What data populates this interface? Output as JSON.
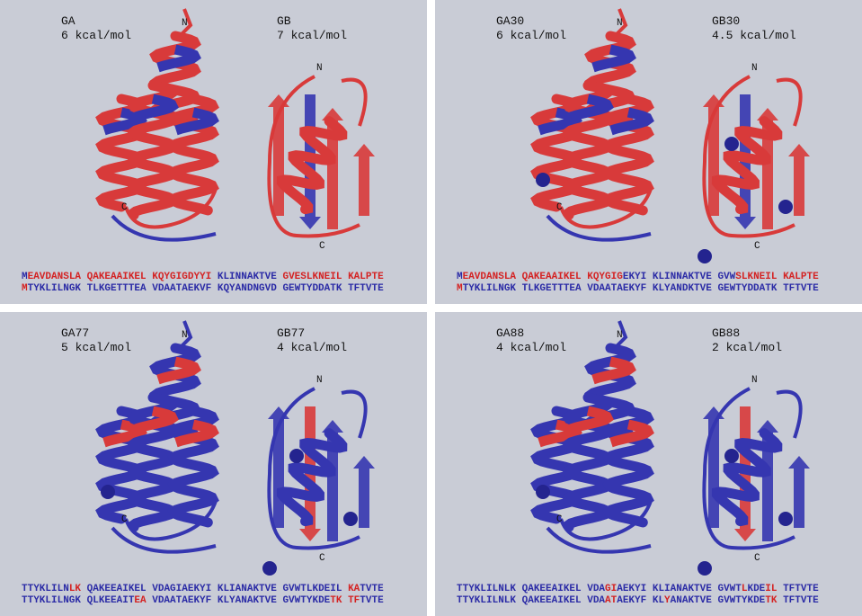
{
  "panels": [
    {
      "left_label": "GA",
      "left_energy": "6 kcal/mol",
      "right_label": "GB",
      "right_energy": "7 kcal/mol",
      "left_n": "N",
      "left_c": "C",
      "right_n": "N",
      "right_c": "C",
      "sequences": [
        [
          {
            "text": "M",
            "color": "#2b2ba6"
          },
          {
            "text": "EAVDANSLA QAKEAAIKEL KQYGIGDYYI ",
            "color": "#d42222"
          },
          {
            "text": "KLINNAKTVE ",
            "color": "#2b2ba6"
          },
          {
            "text": "GVESLKNEIL KALPTE",
            "color": "#d42222"
          }
        ],
        [
          {
            "text": "M",
            "color": "#d42222"
          },
          {
            "text": "TYKLILNGK TLKGETTTEA VDAATAEKVF KQYANDNGVD GEWTYDDATK TFTVTE",
            "color": "#2b2ba6"
          }
        ]
      ]
    },
    {
      "left_label": "GA30",
      "left_energy": "6 kcal/mol",
      "right_label": "GB30",
      "right_energy": "4.5 kcal/mol",
      "left_n": "N",
      "left_c": "C",
      "right_n": "N",
      "right_c": "C",
      "sequences": [
        [
          {
            "text": "M",
            "color": "#2b2ba6"
          },
          {
            "text": "EAVDANSLA QAKEAAIKEL KQYGIG",
            "color": "#d42222"
          },
          {
            "text": "EKYI KLINNAKTVE GVW",
            "color": "#2b2ba6"
          },
          {
            "text": "SLKNEIL KALPTE",
            "color": "#d42222"
          }
        ],
        [
          {
            "text": "M",
            "color": "#d42222"
          },
          {
            "text": "TYKLILNGK TLKGETTTEA VDAATAEKYF KLYANDKTVE GEWTYDDATK TFTVTE",
            "color": "#2b2ba6"
          }
        ]
      ]
    },
    {
      "left_label": "GA77",
      "left_energy": "5 kcal/mol",
      "right_label": "GB77",
      "right_energy": "4 kcal/mol",
      "left_n": "N",
      "left_c": "C",
      "right_n": "N",
      "right_c": "C",
      "sequences": [
        [
          {
            "text": "TTYKLILN",
            "color": "#2b2ba6"
          },
          {
            "text": "LK ",
            "color": "#d42222"
          },
          {
            "text": "QAKEEAIKEL VDAGIAEKYI KLIANAKTVE GVWTLKDEIL ",
            "color": "#2b2ba6"
          },
          {
            "text": "KA",
            "color": "#d42222"
          },
          {
            "text": "TVTE",
            "color": "#2b2ba6"
          }
        ],
        [
          {
            "text": "TTYKLILNGK QLKEEAIT",
            "color": "#2b2ba6"
          },
          {
            "text": "EA ",
            "color": "#d42222"
          },
          {
            "text": "VDAATAEKYF KLYANAKTVE GVWTYKDE",
            "color": "#2b2ba6"
          },
          {
            "text": "TK TF",
            "color": "#d42222"
          },
          {
            "text": "TVTE",
            "color": "#2b2ba6"
          }
        ]
      ]
    },
    {
      "left_label": "GA88",
      "left_energy": "4 kcal/mol",
      "right_label": "GB88",
      "right_energy": "2 kcal/mol",
      "left_n": "N",
      "left_c": "C",
      "right_n": "N",
      "right_c": "C",
      "sequences": [
        [
          {
            "text": "TTYKLILNLK QAKEEAIKEL VDA",
            "color": "#2b2ba6"
          },
          {
            "text": "GI",
            "color": "#d42222"
          },
          {
            "text": "AEKYI KLIANAKTVE GVWT",
            "color": "#2b2ba6"
          },
          {
            "text": "L",
            "color": "#d42222"
          },
          {
            "text": "KDE",
            "color": "#2b2ba6"
          },
          {
            "text": "IL",
            "color": "#d42222"
          },
          {
            "text": " TFTVTE",
            "color": "#2b2ba6"
          }
        ],
        [
          {
            "text": "TTYKLILNLK QAKEEAIKEL VDA",
            "color": "#2b2ba6"
          },
          {
            "text": "AT",
            "color": "#d42222"
          },
          {
            "text": "AEKYF KL",
            "color": "#2b2ba6"
          },
          {
            "text": "Y",
            "color": "#d42222"
          },
          {
            "text": "ANAKTVE GVWTYKDE",
            "color": "#2b2ba6"
          },
          {
            "text": "TK",
            "color": "#d42222"
          },
          {
            "text": " TFTVTE",
            "color": "#2b2ba6"
          }
        ]
      ]
    }
  ]
}
